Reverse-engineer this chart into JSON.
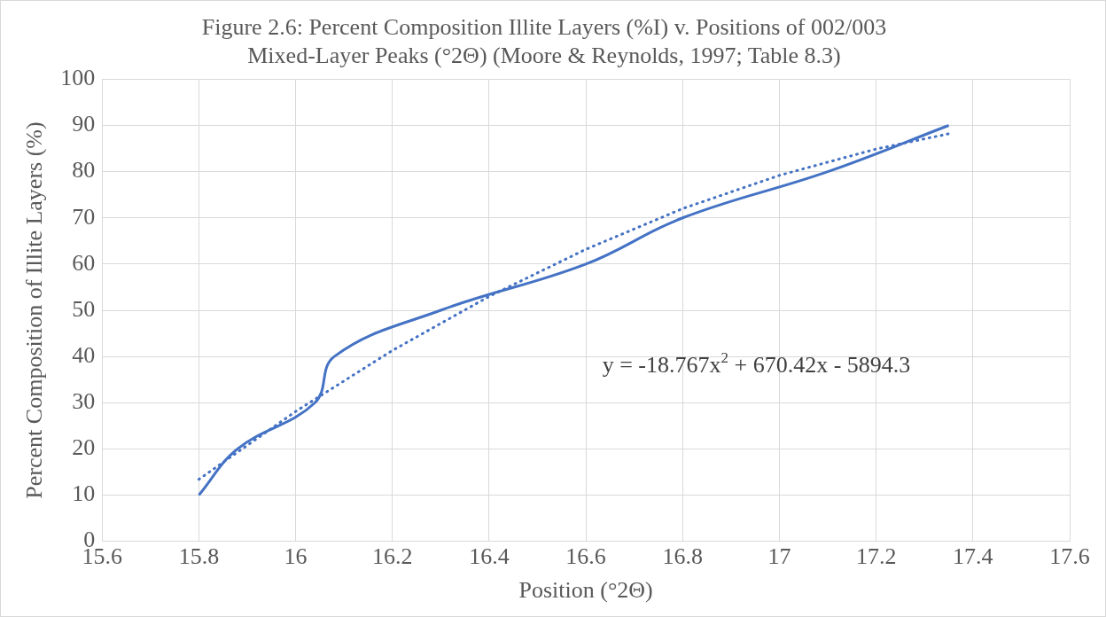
{
  "chart_data": {
    "type": "line",
    "title": [
      "Figure 2.6: Percent Composition Illite Layers (%I) v. Positions of 002/003",
      "Mixed-Layer Peaks (°2Θ) (Moore & Reynolds, 1997; Table 8.3)"
    ],
    "xlabel": "Position (°2Θ)",
    "ylabel": "Percent Composition of Illite Layers (%)",
    "series": [
      {
        "color": "#4472c4",
        "line_style": "solid",
        "x": [
          15.8,
          15.88,
          16.04,
          16.08,
          16.3,
          16.6,
          16.8,
          17.1,
          17.35
        ],
        "values": [
          10,
          20,
          30,
          40,
          50,
          60,
          70,
          80,
          90
        ]
      },
      {
        "color": "#4472c4",
        "line_style": "dotted",
        "x": [
          15.8,
          16.0,
          16.2,
          16.4,
          16.6,
          16.8,
          17.0,
          17.2,
          17.35
        ],
        "values": [
          13.4,
          28.1,
          41.3,
          53.0,
          63.2,
          72.0,
          79.2,
          84.9,
          88.2
        ]
      }
    ],
    "xlim": [
      15.6,
      17.6
    ],
    "xticks": [
      15.6,
      15.8,
      16,
      16.2,
      16.4,
      16.6,
      16.8,
      17,
      17.2,
      17.4,
      17.6
    ],
    "ylim": [
      0,
      100
    ],
    "yticks": [
      0,
      10,
      20,
      30,
      40,
      50,
      60,
      70,
      80,
      90,
      100
    ],
    "grid": true,
    "legend": false,
    "marker": "none",
    "annotations": [
      "y = -18.767x$^{2}$ + 670.42x - 5894.3"
    ]
  }
}
